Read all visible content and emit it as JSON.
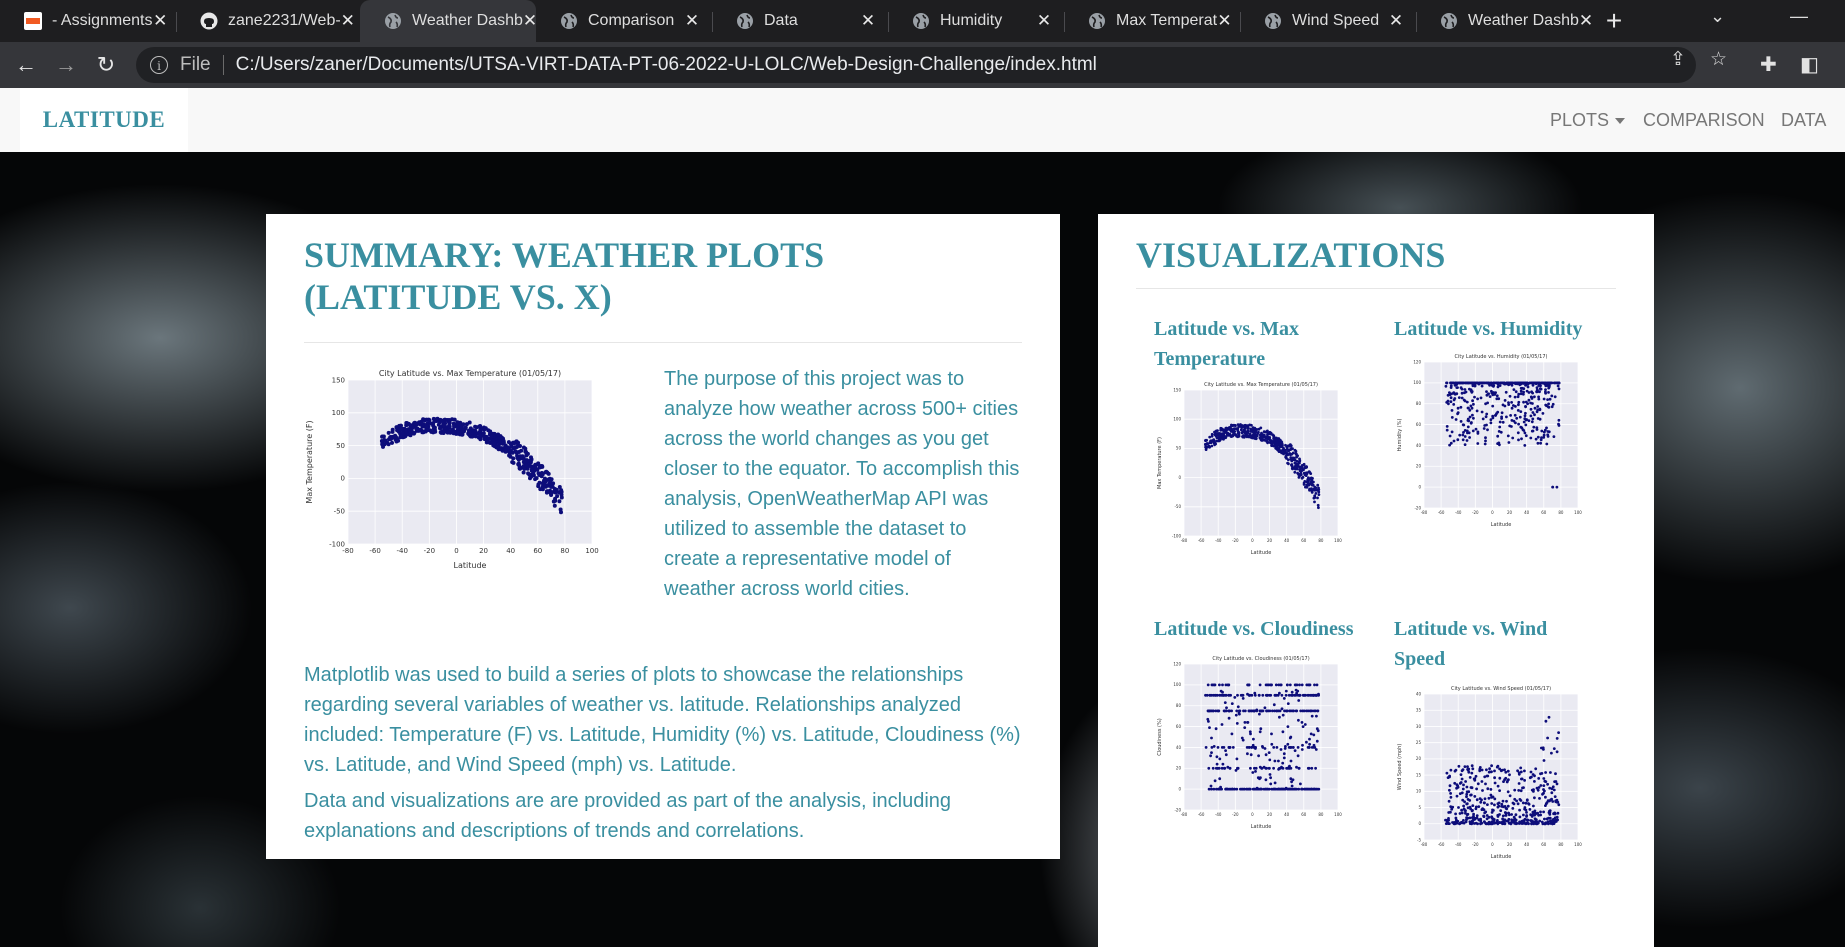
{
  "browser": {
    "tabs": [
      {
        "title": "- Assignments",
        "icon": "utsa-icon"
      },
      {
        "title": "zane2231/Web-",
        "icon": "github-icon"
      },
      {
        "title": "Weather Dashb",
        "icon": "globe-icon",
        "active": true
      },
      {
        "title": "Comparison",
        "icon": "globe-icon"
      },
      {
        "title": "Data",
        "icon": "globe-icon"
      },
      {
        "title": "Humidity",
        "icon": "globe-icon"
      },
      {
        "title": "Max Temperat",
        "icon": "globe-icon"
      },
      {
        "title": "Wind Speed",
        "icon": "globe-icon"
      },
      {
        "title": "Weather Dashb",
        "icon": "globe-icon"
      }
    ],
    "address": {
      "scheme": "File",
      "url": "C:/Users/zaner/Documents/UTSA-VIRT-DATA-PT-06-2022-U-LOLC/Web-Design-Challenge/index.html"
    }
  },
  "navbar": {
    "brand": "LATITUDE",
    "links": {
      "plots": "PLOTS",
      "comparison": "COMPARISON",
      "data": "DATA"
    }
  },
  "summary": {
    "title_line1": "SUMMARY: WEATHER PLOTS",
    "title_line2": "(LATITUDE VS. X)",
    "paragraphs": [
      "The purpose of this project was to analyze how weather across 500+ cities across the world changes as you get closer to the equator. To accomplish this analysis, OpenWeatherMap API was utilized to assemble the dataset to create a representative model of weather across world cities.",
      "Matplotlib was used to build a series of plots to showcase the relationships regarding several variables of weather vs. latitude. Relationships analyzed included: Temperature (F) vs. Latitude, Humidity (%) vs. Latitude, Cloudiness (%) vs. Latitude, and Wind Speed (mph) vs. Latitude.",
      "Data and visualizations are are provided as part of the analysis, including explanations and descriptions of trends and correlations."
    ]
  },
  "visualizations": {
    "title": "VISUALIZATIONS",
    "cards": [
      {
        "label": "Latitude vs. Max Temperature"
      },
      {
        "label": "Latitude vs. Humidity"
      },
      {
        "label": "Latitude vs. Cloudiness"
      },
      {
        "label": "Latitude vs. Wind Speed"
      }
    ]
  },
  "colors": {
    "accent": "#3a8fa0",
    "point": "#0d0d7a",
    "plot_bg": "#eaeaf2"
  },
  "chart_data": [
    {
      "type": "scatter",
      "title": "City Latitude vs. Max Temperature (01/05/17)",
      "xlabel": "Latitude",
      "ylabel": "Max Temperature (F)",
      "xlim": [
        -80,
        100
      ],
      "ylim": [
        -100,
        150
      ],
      "xticks": [
        -80,
        -60,
        -40,
        -20,
        0,
        20,
        40,
        60,
        80,
        100
      ],
      "yticks": [
        -100,
        -50,
        0,
        50,
        100,
        150
      ],
      "trend": "inverted parabola peaking ~80F near lat -20..10, falling to ~-60F at lat 70"
    },
    {
      "type": "scatter",
      "title": "City Latitude vs. Max Temperature (01/05/17)",
      "xlabel": "Latitude",
      "ylabel": "Max Temperature (F)",
      "xlim": [
        -80,
        100
      ],
      "ylim": [
        -100,
        150
      ],
      "trend": "same data as summary plot"
    },
    {
      "type": "scatter",
      "title": "City Latitude vs. Humidity (01/05/17)",
      "xlabel": "Latitude",
      "ylabel": "Humidity (%)",
      "xlim": [
        -80,
        100
      ],
      "ylim": [
        -20,
        120
      ],
      "xticks": [
        -80,
        -60,
        -40,
        -20,
        0,
        20,
        40,
        60,
        80,
        100
      ],
      "yticks": [
        -20,
        0,
        20,
        40,
        60,
        80,
        100,
        120
      ],
      "trend": "dense band at 100%, spread 40-100%, cluster at 0 near lat 70-80"
    },
    {
      "type": "scatter",
      "title": "City Latitude vs. Cloudiness (01/05/17)",
      "xlabel": "Latitude",
      "ylabel": "Cloudiness (%)",
      "xlim": [
        -80,
        100
      ],
      "ylim": [
        -20,
        120
      ],
      "xticks": [
        -80,
        -60,
        -40,
        -20,
        0,
        20,
        40,
        60,
        80,
        100
      ],
      "yticks": [
        -20,
        0,
        20,
        40,
        60,
        80,
        100,
        120
      ],
      "trend": "horizontal bands at 0, 20, 40, 75, 90, 100"
    },
    {
      "type": "scatter",
      "title": "City Latitude vs. Wind Speed (01/05/17)",
      "xlabel": "Latitude",
      "ylabel": "Wind Speed (mph)",
      "xlim": [
        -80,
        100
      ],
      "ylim": [
        -5,
        40
      ],
      "xticks": [
        -80,
        -60,
        -40,
        -20,
        0,
        20,
        40,
        60,
        80,
        100
      ],
      "yticks": [
        -5,
        0,
        5,
        10,
        15,
        20,
        25,
        30,
        35,
        40
      ],
      "trend": "mostly 0-15 mph, outliers to ~36 near lat 70"
    }
  ]
}
